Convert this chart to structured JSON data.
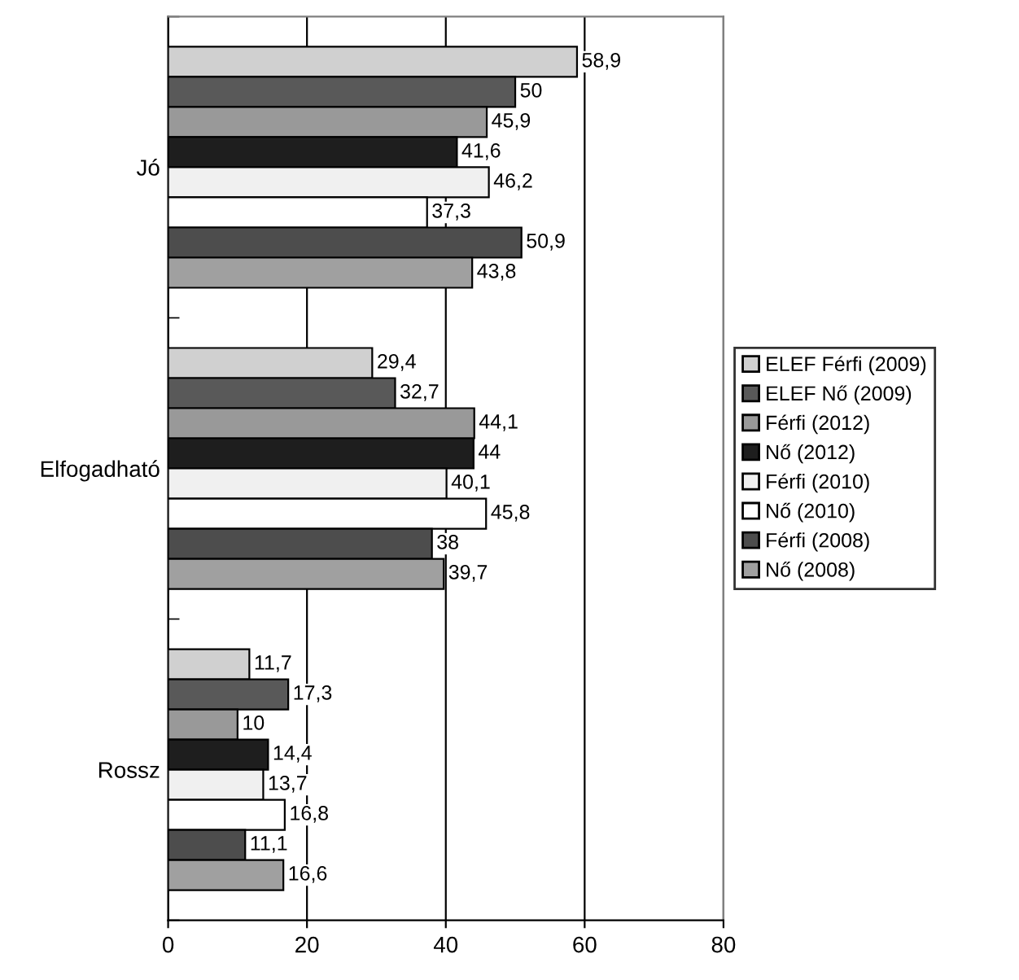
{
  "chart_data": {
    "type": "bar",
    "orientation": "horizontal",
    "categories": [
      "Jó",
      "Elfogadható",
      "Rossz"
    ],
    "xlim": [
      0,
      80
    ],
    "xticks": [
      0,
      20,
      40,
      60,
      80
    ],
    "grid": "x",
    "legend": "right",
    "series": [
      {
        "name": "ELEF Férfi (2009)",
        "color": "#d0d0d0",
        "values": [
          58.9,
          29.4,
          11.7
        ],
        "value_labels": [
          "58,9",
          "29,4",
          "11,7"
        ]
      },
      {
        "name": "ELEF Nő (2009)",
        "color": "#595959",
        "values": [
          50,
          32.7,
          17.3
        ],
        "value_labels": [
          "50",
          "32,7",
          "17,3"
        ]
      },
      {
        "name": "Férfi (2012)",
        "color": "#999999",
        "values": [
          45.9,
          44.1,
          10
        ],
        "value_labels": [
          "45,9",
          "44,1",
          "10"
        ]
      },
      {
        "name": "Nő (2012)",
        "color": "#1e1e1e",
        "values": [
          41.6,
          44,
          14.4
        ],
        "value_labels": [
          "41,6",
          "44",
          "14,4"
        ]
      },
      {
        "name": "Férfi (2010)",
        "color": "#f0f0f0",
        "values": [
          46.2,
          40.1,
          13.7
        ],
        "value_labels": [
          "46,2",
          "40,1",
          "13,7"
        ]
      },
      {
        "name": "Nő (2010)",
        "color": "#ffffff",
        "values": [
          37.3,
          45.8,
          16.8
        ],
        "value_labels": [
          "37,3",
          "45,8",
          "16,8"
        ]
      },
      {
        "name": "Férfi (2008)",
        "color": "#4d4d4d",
        "values": [
          50.9,
          38,
          11.1
        ],
        "value_labels": [
          "50,9",
          "38",
          "11,1"
        ]
      },
      {
        "name": "Nő (2008)",
        "color": "#a0a0a0",
        "values": [
          43.8,
          39.7,
          16.6
        ],
        "value_labels": [
          "43,8",
          "39,7",
          "16,6"
        ]
      }
    ]
  }
}
